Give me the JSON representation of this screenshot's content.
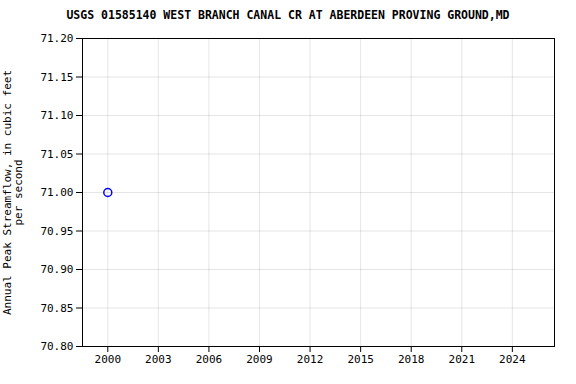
{
  "chart_data": {
    "type": "scatter",
    "title": "USGS 01585140 WEST BRANCH CANAL CR AT ABERDEEN PROVING GROUND,MD",
    "ylabel": "Annual Peak Streamflow, in cubic feet\nper second",
    "x": [
      2000
    ],
    "values": [
      71.0
    ],
    "color": "#0000ff",
    "marker": "circle",
    "xlim": [
      1998.5,
      2026.5
    ],
    "ylim": [
      70.8,
      71.2
    ],
    "xticks": [
      2000,
      2003,
      2006,
      2009,
      2012,
      2015,
      2018,
      2021,
      2024
    ],
    "yticks": [
      {
        "value": 70.8,
        "label": "70.80"
      },
      70.85,
      {
        "value": 70.9,
        "label": "70.90"
      },
      70.95,
      {
        "value": 71.0,
        "label": "71.00"
      },
      71.05,
      {
        "value": 71.1,
        "label": "71.10"
      },
      71.15,
      {
        "value": 71.2,
        "label": "71.20"
      }
    ],
    "grid": true
  }
}
